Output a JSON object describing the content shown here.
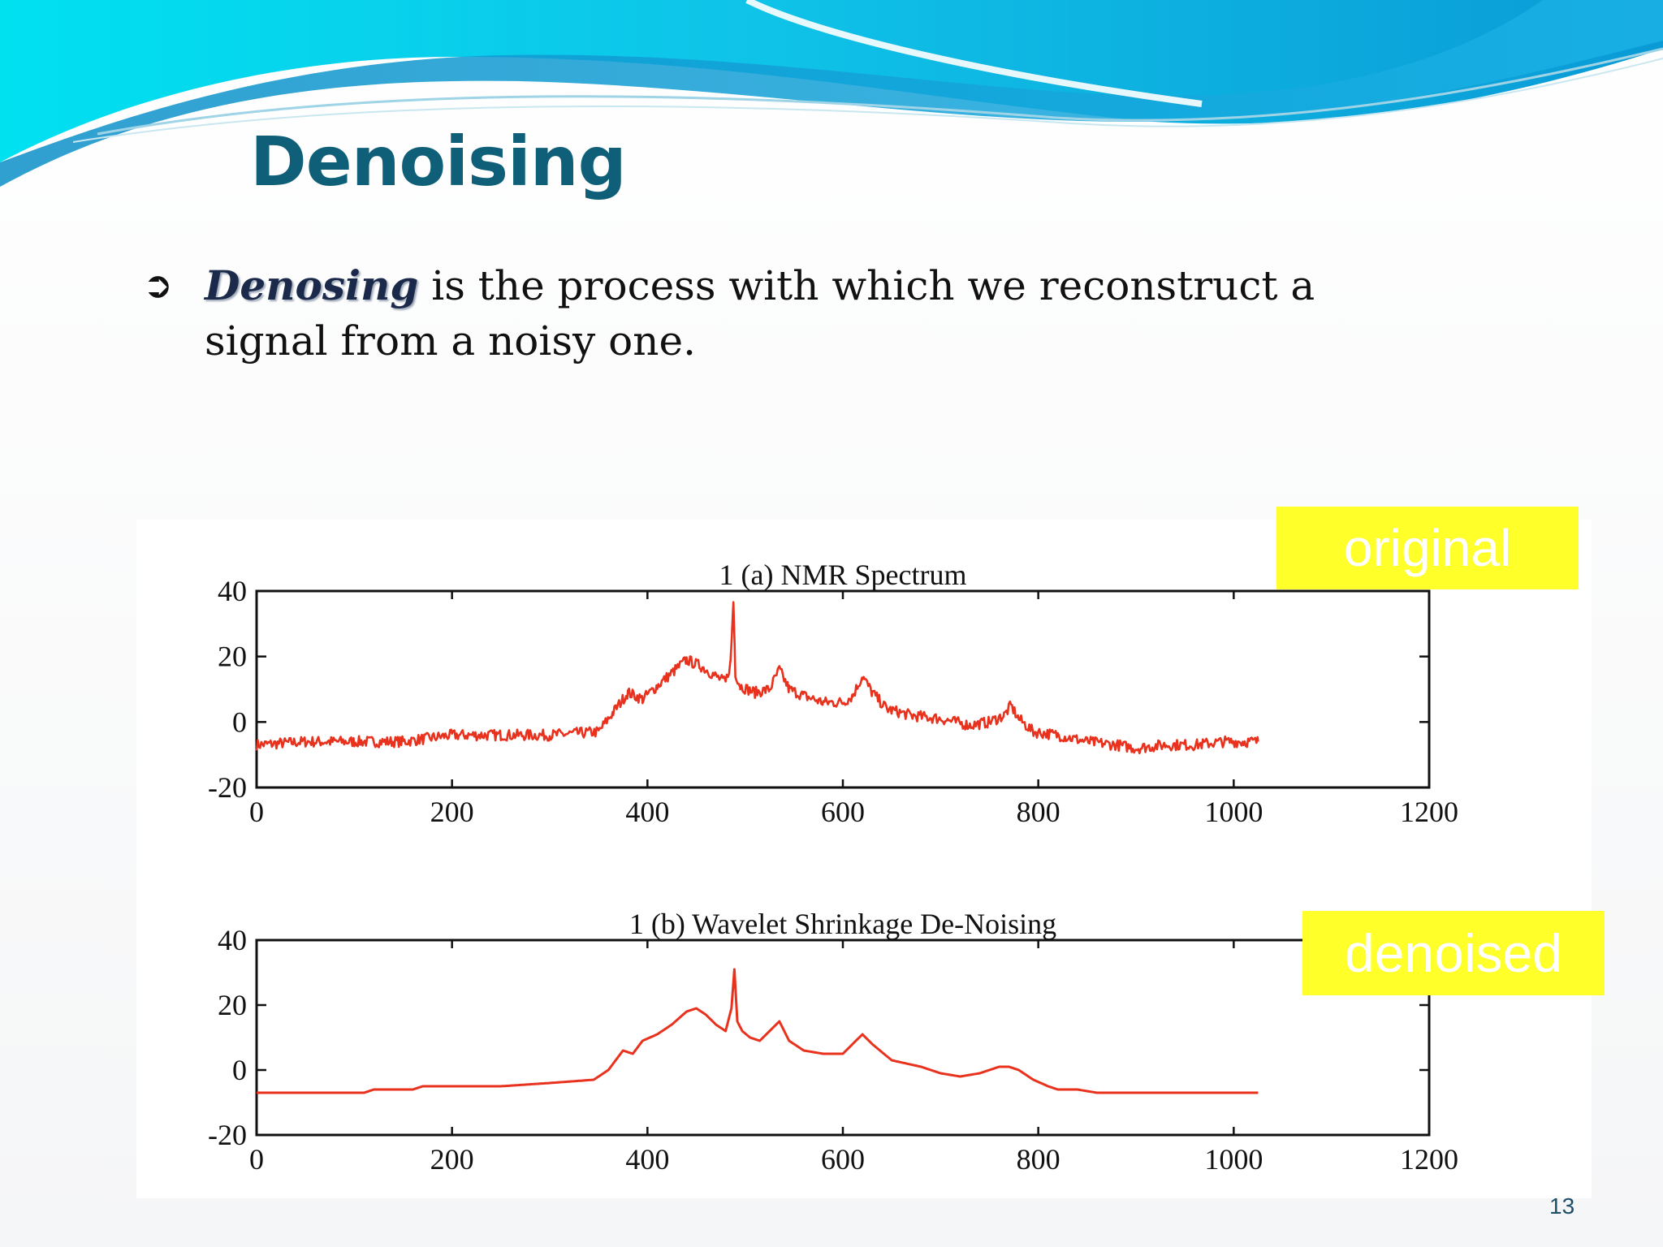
{
  "slide": {
    "title": "Denoising",
    "bullet_icon": "arrow-bullet-icon",
    "bullet_term": "Denosing",
    "bullet_rest": " is the process with which we reconstruct a signal from a noisy one.",
    "labels": {
      "original": "original",
      "denoised": "denoised"
    },
    "page_number": "13",
    "colors": {
      "title": "#0f5f78",
      "label_background": "#ffff2a",
      "wave_light": "#00e1f0",
      "wave_dark": "#0a9ad6"
    }
  },
  "chart_data": [
    {
      "type": "line",
      "title": "1 (a) NMR Spectrum",
      "xlabel": "",
      "ylabel": "",
      "xlim": [
        0,
        1200
      ],
      "ylim": [
        -20,
        40
      ],
      "xticks": [
        0,
        200,
        400,
        600,
        800,
        1000,
        1200
      ],
      "yticks": [
        -20,
        0,
        20,
        40
      ],
      "grid": false,
      "color": "#e8321e",
      "noisy": true,
      "x": [
        0,
        50,
        100,
        150,
        200,
        250,
        300,
        350,
        365,
        380,
        395,
        410,
        425,
        440,
        455,
        470,
        480,
        485,
        488,
        490,
        495,
        510,
        525,
        535,
        545,
        560,
        580,
        600,
        610,
        620,
        630,
        645,
        670,
        700,
        730,
        750,
        765,
        772,
        780,
        795,
        820,
        850,
        880,
        900,
        930,
        960,
        990,
        1010,
        1025
      ],
      "y": [
        -7,
        -6,
        -6,
        -6,
        -4,
        -4,
        -4,
        -3,
        3,
        9,
        7,
        11,
        15,
        19,
        17,
        14,
        12,
        18,
        37,
        15,
        11,
        9,
        10,
        16,
        10,
        8,
        6,
        6,
        8,
        14,
        9,
        4,
        2,
        1,
        -1,
        0,
        2,
        5,
        1,
        -3,
        -4,
        -6,
        -7,
        -8,
        -7,
        -7,
        -6,
        -6,
        -6
      ]
    },
    {
      "type": "line",
      "title": "1 (b) Wavelet Shrinkage De-Noising",
      "xlabel": "",
      "ylabel": "",
      "xlim": [
        0,
        1200
      ],
      "ylim": [
        -20,
        40
      ],
      "xticks": [
        0,
        200,
        400,
        600,
        800,
        1000,
        1200
      ],
      "yticks": [
        -20,
        0,
        20,
        40
      ],
      "grid": false,
      "color": "#e8321e",
      "noisy": false,
      "x": [
        0,
        110,
        120,
        160,
        170,
        250,
        300,
        345,
        360,
        375,
        385,
        395,
        410,
        425,
        440,
        450,
        460,
        470,
        480,
        486,
        489,
        492,
        497,
        505,
        515,
        525,
        535,
        545,
        560,
        580,
        600,
        610,
        620,
        630,
        650,
        680,
        700,
        720,
        740,
        760,
        770,
        780,
        795,
        810,
        820,
        840,
        860,
        900,
        950,
        1000,
        1025
      ],
      "y": [
        -7,
        -7,
        -6,
        -6,
        -5,
        -5,
        -4,
        -3,
        0,
        6,
        5,
        9,
        11,
        14,
        18,
        19,
        17,
        14,
        12,
        19,
        31,
        15,
        12,
        10,
        9,
        12,
        15,
        9,
        6,
        5,
        5,
        8,
        11,
        8,
        3,
        1,
        -1,
        -2,
        -1,
        1,
        1,
        0,
        -3,
        -5,
        -6,
        -6,
        -7,
        -7,
        -7,
        -7,
        -7
      ]
    }
  ]
}
